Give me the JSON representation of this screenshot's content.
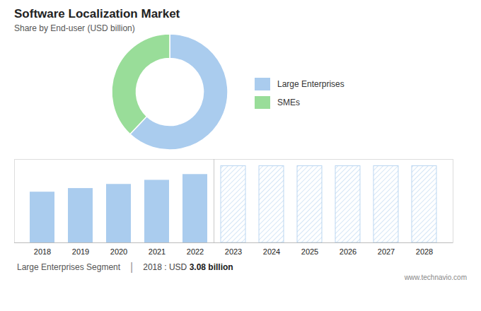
{
  "chart_data": [
    {
      "type": "pie",
      "title": "Software Localization Market",
      "subtitle": "Share by End-user (USD billion)",
      "categories": [
        "Large Enterprises",
        "SMEs"
      ],
      "values": [
        62,
        38
      ],
      "colors": [
        "#aaccee",
        "#99dd99"
      ],
      "legend": "right"
    },
    {
      "type": "bar",
      "categories": [
        "2018",
        "2019",
        "2020",
        "2021",
        "2022",
        "2023",
        "2024",
        "2025",
        "2026",
        "2027",
        "2028"
      ],
      "series": [
        {
          "color": "#aaccee",
          "values": [
            3.08,
            3.3,
            3.55,
            3.8,
            4.15,
            null,
            null,
            null,
            null,
            null,
            null
          ]
        },
        {
          "color": "#aaccee",
          "line_style": "hatch",
          "values": [
            null,
            null,
            null,
            null,
            null,
            4.65796,
            4.65796,
            4.65796,
            4.65796,
            4.65796,
            4.65796
          ]
        }
      ],
      "ylim": [
        0,
        5.063
      ],
      "yticks": [],
      "grid": false,
      "tick_labels": "x",
      "annotations": [
        "Large Enterprises Segment",
        "|",
        "2018 : USD ",
        "3.08 billion",
        "www.technavio.com"
      ]
    }
  ]
}
